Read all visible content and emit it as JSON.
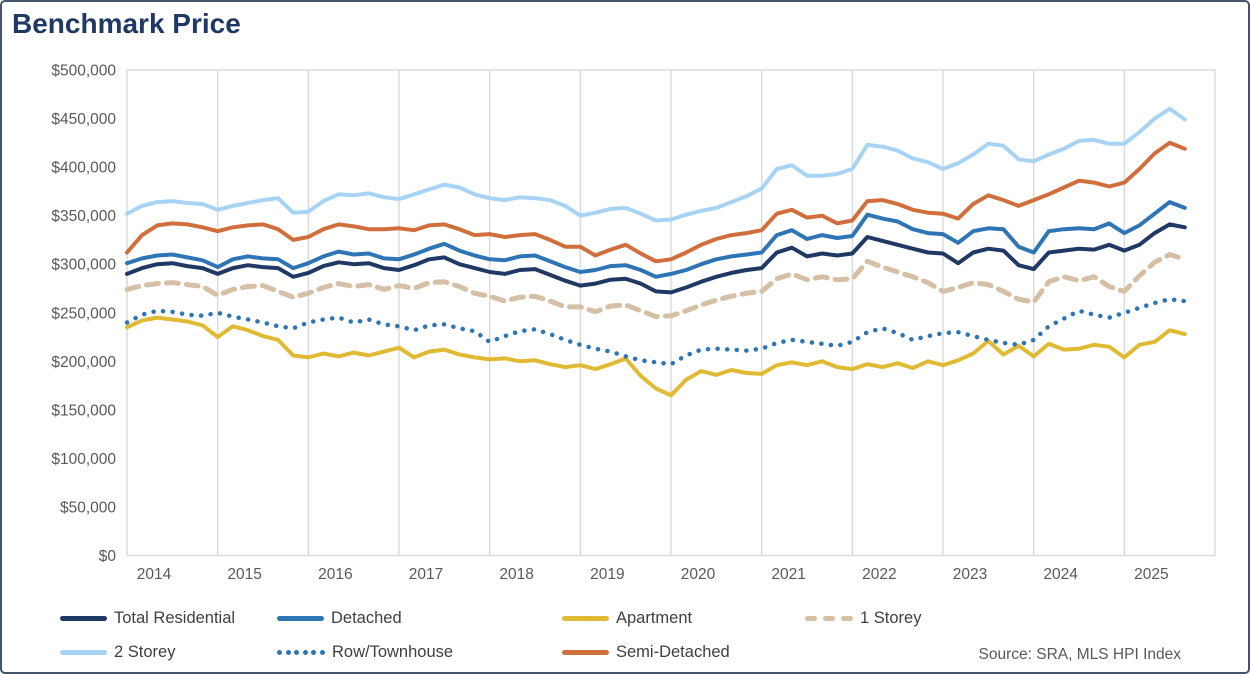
{
  "card": {
    "title": "Benchmark Price",
    "source": "Source: SRA, MLS HPI Index"
  },
  "colors": {
    "title": "#1F3864",
    "grid": "#D9D9D9",
    "axis_text": "#595959",
    "legend_text": "#404040",
    "card_border": "#44546A"
  },
  "chart_data": {
    "type": "line",
    "title": "Benchmark Price",
    "xlabel": "",
    "ylabel": "",
    "grid": "vertical-only",
    "legend_position": "bottom",
    "x_start_year": 2014,
    "x_step_months": 2,
    "x_axis": {
      "tick_labels": [
        "2014",
        "2015",
        "2016",
        "2017",
        "2018",
        "2019",
        "2020",
        "2021",
        "2022",
        "2023",
        "2024",
        "2025"
      ]
    },
    "y_axis": {
      "min": 0,
      "max": 500000,
      "tick_step": 50000,
      "tick_labels": [
        "$500,000",
        "$450,000",
        "$400,000",
        "$350,000",
        "$300,000",
        "$250,000",
        "$200,000",
        "$150,000",
        "$100,000",
        "$50,000",
        "$0"
      ]
    },
    "legend_rows": [
      [
        0,
        1,
        2,
        3
      ],
      [
        4,
        5,
        6
      ]
    ],
    "series": [
      {
        "name": "Total Residential",
        "color": "#1F3864",
        "style": "solid",
        "values": [
          290000,
          296000,
          300000,
          301000,
          298000,
          296000,
          290000,
          296000,
          299000,
          297000,
          296000,
          287000,
          291000,
          298000,
          302000,
          300000,
          301000,
          296000,
          294000,
          299000,
          305000,
          307000,
          300000,
          296000,
          292000,
          290000,
          294000,
          295000,
          289000,
          283000,
          278000,
          280000,
          284000,
          285000,
          280000,
          272000,
          271000,
          276000,
          282000,
          287000,
          291000,
          294000,
          296000,
          312000,
          317000,
          308000,
          311000,
          309000,
          311000,
          328000,
          324000,
          320000,
          316000,
          312000,
          311000,
          301000,
          312000,
          316000,
          314000,
          299000,
          295000,
          312000,
          314000,
          316000,
          315000,
          320000,
          314000,
          320000,
          332000,
          341000,
          338000
        ]
      },
      {
        "name": "Detached",
        "color": "#2E75B6",
        "style": "solid",
        "values": [
          301000,
          306000,
          309000,
          310000,
          307000,
          304000,
          297000,
          305000,
          308000,
          306000,
          305000,
          296000,
          301000,
          308000,
          313000,
          310000,
          311000,
          306000,
          305000,
          310000,
          316000,
          321000,
          314000,
          309000,
          305000,
          304000,
          308000,
          309000,
          303000,
          297000,
          292000,
          294000,
          298000,
          299000,
          294000,
          287000,
          290000,
          294000,
          300000,
          305000,
          308000,
          310000,
          312000,
          330000,
          335000,
          326000,
          330000,
          327000,
          329000,
          351000,
          347000,
          344000,
          336000,
          332000,
          331000,
          322000,
          334000,
          337000,
          336000,
          318000,
          312000,
          334000,
          336000,
          337000,
          336000,
          342000,
          332000,
          340000,
          352000,
          364000,
          358000
        ]
      },
      {
        "name": "Apartment",
        "color": "#E0BA33",
        "style": "solid",
        "values": [
          235000,
          242000,
          245000,
          243000,
          241000,
          237000,
          225000,
          236000,
          232000,
          226000,
          222000,
          206000,
          204000,
          208000,
          205000,
          209000,
          206000,
          210000,
          214000,
          204000,
          210000,
          212000,
          207000,
          204000,
          202000,
          203000,
          200000,
          201000,
          197000,
          194000,
          196000,
          192000,
          197000,
          203000,
          185000,
          172000,
          165000,
          181000,
          190000,
          186000,
          191000,
          188000,
          187000,
          196000,
          199000,
          196000,
          200000,
          194000,
          192000,
          197000,
          194000,
          198000,
          193000,
          200000,
          196000,
          201000,
          208000,
          221000,
          207000,
          216000,
          205000,
          218000,
          212000,
          213000,
          217000,
          215000,
          204000,
          217000,
          220000,
          232000,
          228000
        ]
      },
      {
        "name": "1 Storey",
        "color": "#D5BFA5",
        "style": "dashed",
        "values": [
          274000,
          278000,
          280000,
          281000,
          279000,
          277000,
          268000,
          274000,
          277000,
          278000,
          272000,
          266000,
          270000,
          276000,
          280000,
          277000,
          279000,
          274000,
          278000,
          275000,
          281000,
          282000,
          277000,
          270000,
          267000,
          262000,
          266000,
          267000,
          262000,
          256000,
          256000,
          251000,
          257000,
          258000,
          252000,
          246000,
          247000,
          252000,
          258000,
          263000,
          267000,
          270000,
          272000,
          285000,
          290000,
          284000,
          287000,
          284000,
          285000,
          303000,
          297000,
          292000,
          287000,
          281000,
          272000,
          276000,
          281000,
          279000,
          272000,
          264000,
          261000,
          282000,
          287000,
          283000,
          287000,
          277000,
          272000,
          288000,
          302000,
          310000,
          305000
        ]
      },
      {
        "name": "2 Storey",
        "color": "#A7D4F5",
        "style": "solid",
        "values": [
          352000,
          360000,
          364000,
          365000,
          363000,
          362000,
          356000,
          360000,
          363000,
          366000,
          368000,
          353000,
          354000,
          365000,
          372000,
          371000,
          373000,
          369000,
          367000,
          372000,
          377000,
          382000,
          379000,
          372000,
          368000,
          366000,
          369000,
          368000,
          366000,
          360000,
          350000,
          353000,
          357000,
          358000,
          352000,
          345000,
          346000,
          351000,
          355000,
          358000,
          364000,
          370000,
          378000,
          398000,
          402000,
          391000,
          391000,
          393000,
          398000,
          423000,
          421000,
          417000,
          409000,
          405000,
          398000,
          404000,
          413000,
          424000,
          422000,
          408000,
          406000,
          413000,
          419000,
          427000,
          428000,
          424000,
          424000,
          436000,
          450000,
          460000,
          449000
        ]
      },
      {
        "name": "Row/Townhouse",
        "color": "#2E75B6",
        "style": "dotted",
        "values": [
          240000,
          248000,
          252000,
          251000,
          248000,
          247000,
          250000,
          246000,
          243000,
          240000,
          236000,
          234000,
          240000,
          243000,
          245000,
          240000,
          243000,
          238000,
          236000,
          232000,
          237000,
          238000,
          234000,
          231000,
          220000,
          226000,
          231000,
          233000,
          228000,
          222000,
          217000,
          213000,
          210000,
          205000,
          201000,
          199000,
          197000,
          206000,
          212000,
          213000,
          212000,
          211000,
          213000,
          219000,
          222000,
          220000,
          218000,
          216000,
          220000,
          230000,
          234000,
          229000,
          222000,
          226000,
          229000,
          230000,
          226000,
          222000,
          219000,
          217000,
          222000,
          236000,
          244000,
          252000,
          248000,
          245000,
          250000,
          255000,
          260000,
          264000,
          262000
        ]
      },
      {
        "name": "Semi-Detached",
        "color": "#D06F3C",
        "style": "solid",
        "values": [
          312000,
          330000,
          340000,
          342000,
          341000,
          338000,
          334000,
          338000,
          340000,
          341000,
          336000,
          325000,
          328000,
          336000,
          341000,
          339000,
          336000,
          336000,
          337000,
          335000,
          340000,
          341000,
          336000,
          330000,
          331000,
          328000,
          330000,
          331000,
          325000,
          318000,
          318000,
          309000,
          315000,
          320000,
          311000,
          303000,
          305000,
          312000,
          320000,
          326000,
          330000,
          332000,
          335000,
          352000,
          356000,
          348000,
          350000,
          342000,
          345000,
          365000,
          366000,
          362000,
          356000,
          353000,
          352000,
          347000,
          362000,
          371000,
          366000,
          360000,
          366000,
          372000,
          379000,
          386000,
          384000,
          380000,
          384000,
          398000,
          414000,
          425000,
          419000
        ]
      }
    ]
  }
}
